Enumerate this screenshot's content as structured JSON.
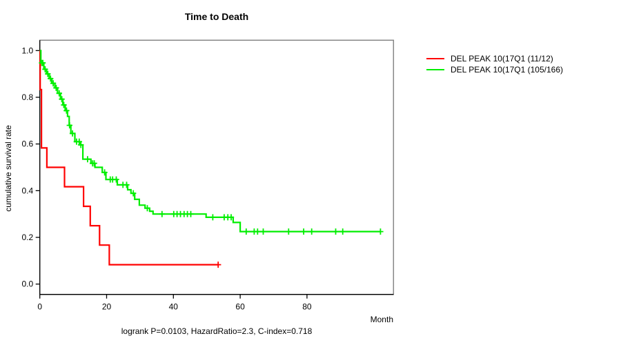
{
  "figure": {
    "title": "Time to Death",
    "x_axis": {
      "label": "Month",
      "ticks": [
        0,
        20,
        40,
        60,
        80
      ]
    },
    "y_axis": {
      "label": "cumulative survival rate",
      "ticks": [
        "0.0",
        "0.2",
        "0.4",
        "0.6",
        "0.8",
        "1.0"
      ]
    },
    "footer": "logrank P=0.0103, HazardRatio=2.3, C-index=0.718",
    "legend": [
      {
        "label": "DEL PEAK 10(17Q1 (11/12)",
        "color": "#ff0000"
      },
      {
        "label": "DEL PEAK 10(17Q1 (105/166)",
        "color": "#00ee00"
      }
    ],
    "colors": {
      "frame": "#858585",
      "axis": "#000000",
      "curve_red": "#ff0000",
      "curve_green": "#00ee00"
    }
  },
  "chart_data": {
    "type": "line",
    "subtype": "kaplan-meier-step-curve",
    "title": "Time to Death",
    "xlabel": "Month",
    "ylabel": "cumulative survival rate",
    "xlim": [
      0,
      105
    ],
    "ylim": [
      0.0,
      1.0
    ],
    "x_ticks": [
      0,
      20,
      40,
      60,
      80
    ],
    "y_ticks": [
      0.0,
      0.2,
      0.4,
      0.6,
      0.8,
      1.0
    ],
    "grid": false,
    "legend_position": "right-outside",
    "series": [
      {
        "name": "DEL PEAK 10(17Q1 (11/12)",
        "events": "11/12",
        "color": "#ff0000",
        "steps": [
          [
            0,
            1.0
          ],
          [
            0.1,
            0.833
          ],
          [
            0.5,
            0.583
          ],
          [
            2.1,
            0.5
          ],
          [
            7.4,
            0.417
          ],
          [
            13.1,
            0.333
          ],
          [
            15.1,
            0.25
          ],
          [
            17.9,
            0.167
          ],
          [
            20.8,
            0.083
          ]
        ],
        "end_month": 53.4,
        "censor_marks": [
          [
            53.4,
            0.083
          ]
        ]
      },
      {
        "name": "DEL PEAK 10(17Q1 (105/166)",
        "events": "105/166",
        "color": "#00ee00",
        "steps": [
          [
            0,
            1.0
          ],
          [
            0.3,
            0.947
          ],
          [
            1.2,
            0.92
          ],
          [
            2.0,
            0.9
          ],
          [
            2.8,
            0.88
          ],
          [
            3.6,
            0.86
          ],
          [
            4.5,
            0.84
          ],
          [
            5.3,
            0.817
          ],
          [
            6.2,
            0.792
          ],
          [
            6.9,
            0.767
          ],
          [
            7.6,
            0.743
          ],
          [
            8.3,
            0.718
          ],
          [
            8.8,
            0.68
          ],
          [
            9.3,
            0.645
          ],
          [
            10.5,
            0.61
          ],
          [
            12.0,
            0.596
          ],
          [
            12.9,
            0.535
          ],
          [
            15.3,
            0.517
          ],
          [
            16.5,
            0.5
          ],
          [
            18.7,
            0.478
          ],
          [
            19.8,
            0.448
          ],
          [
            23.2,
            0.425
          ],
          [
            26.3,
            0.404
          ],
          [
            27.3,
            0.389
          ],
          [
            28.4,
            0.363
          ],
          [
            29.8,
            0.338
          ],
          [
            31.5,
            0.325
          ],
          [
            32.9,
            0.312
          ],
          [
            33.9,
            0.3
          ],
          [
            49.8,
            0.286
          ],
          [
            57.9,
            0.264
          ],
          [
            60.0,
            0.225
          ]
        ],
        "end_month": 102,
        "censor_marks": [
          [
            0.6,
            0.947
          ],
          [
            0.9,
            0.947
          ],
          [
            1.6,
            0.92
          ],
          [
            2.4,
            0.9
          ],
          [
            3.2,
            0.88
          ],
          [
            4.0,
            0.86
          ],
          [
            4.9,
            0.84
          ],
          [
            5.8,
            0.817
          ],
          [
            6.6,
            0.792
          ],
          [
            7.2,
            0.767
          ],
          [
            8.0,
            0.743
          ],
          [
            8.9,
            0.68
          ],
          [
            9.8,
            0.645
          ],
          [
            11.0,
            0.61
          ],
          [
            11.8,
            0.61
          ],
          [
            12.3,
            0.596
          ],
          [
            14.3,
            0.535
          ],
          [
            15.8,
            0.517
          ],
          [
            16.3,
            0.517
          ],
          [
            19.4,
            0.478
          ],
          [
            21.1,
            0.448
          ],
          [
            21.8,
            0.448
          ],
          [
            22.9,
            0.448
          ],
          [
            24.9,
            0.425
          ],
          [
            26.0,
            0.425
          ],
          [
            28.0,
            0.389
          ],
          [
            32.2,
            0.325
          ],
          [
            36.6,
            0.3
          ],
          [
            40.1,
            0.3
          ],
          [
            41.1,
            0.3
          ],
          [
            42.1,
            0.3
          ],
          [
            43.2,
            0.3
          ],
          [
            44.2,
            0.3
          ],
          [
            45.2,
            0.3
          ],
          [
            51.8,
            0.286
          ],
          [
            55.2,
            0.286
          ],
          [
            56.3,
            0.286
          ],
          [
            57.3,
            0.286
          ],
          [
            61.8,
            0.225
          ],
          [
            64.2,
            0.225
          ],
          [
            65.2,
            0.225
          ],
          [
            66.9,
            0.225
          ],
          [
            74.5,
            0.225
          ],
          [
            79.0,
            0.225
          ],
          [
            81.4,
            0.225
          ],
          [
            88.6,
            0.225
          ],
          [
            90.7,
            0.225
          ],
          [
            102,
            0.225
          ]
        ]
      }
    ]
  }
}
